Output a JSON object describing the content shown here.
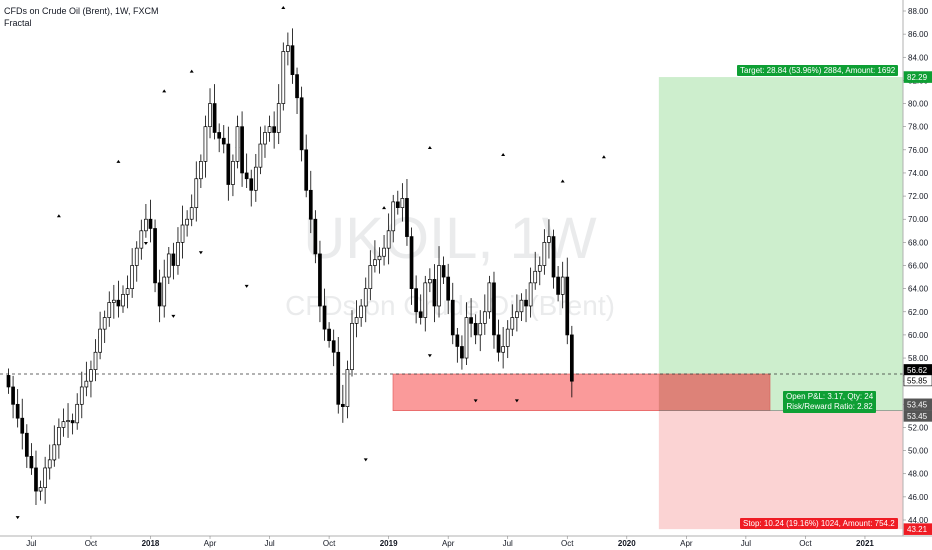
{
  "header": {
    "title": "CFDs on Crude Oil (Brent), 1W, FXCM",
    "indicator": "Fractal"
  },
  "watermark": {
    "symbol": "UKOIL, 1W",
    "name": "CFDs on Crude Oil (Brent)"
  },
  "colors": {
    "up": "#ffffff",
    "down": "#000000",
    "target_zone": "#cdeecd",
    "stop_zone": "#fbd3d3",
    "entry_zone": "#f98f8f",
    "green_label": "#0e9f34",
    "red_label": "#ef1c24"
  },
  "position": {
    "target_label": "Target: 28.84 (53.96%) 2884, Amount: 1692",
    "stop_label": "Stop: 10.24 (19.16%) 1024, Amount: 754.2",
    "pnl_line1": "Open P&L: 3.17, Qty: 24",
    "pnl_line2": "Risk/Reward Ratio: 2.82"
  },
  "price_tags": {
    "target": "82.29",
    "current": "56.62",
    "close": "55.85",
    "entry": "53.45",
    "entry2": "53.45",
    "stop": "43.21"
  },
  "chart_data": {
    "type": "candlestick",
    "title": "CFDs on Crude Oil (Brent), 1W, FXCM",
    "ylim": [
      42.4,
      89.2
    ],
    "y_ticks": [
      "44.00",
      "46.00",
      "48.00",
      "50.00",
      "52.00",
      "54.00",
      "56.00",
      "58.00",
      "60.00",
      "62.00",
      "64.00",
      "66.00",
      "68.00",
      "70.00",
      "72.00",
      "74.00",
      "76.00",
      "78.00",
      "80.00",
      "82.00",
      "84.00",
      "86.00",
      "88.00"
    ],
    "x_labels": [
      {
        "label": "Jul",
        "bold": false,
        "week": 5
      },
      {
        "label": "Oct",
        "bold": false,
        "week": 18
      },
      {
        "label": "2018",
        "bold": true,
        "week": 31
      },
      {
        "label": "Apr",
        "bold": false,
        "week": 44
      },
      {
        "label": "Jul",
        "bold": false,
        "week": 57
      },
      {
        "label": "Oct",
        "bold": false,
        "week": 70
      },
      {
        "label": "2019",
        "bold": true,
        "week": 83
      },
      {
        "label": "Apr",
        "bold": false,
        "week": 96
      },
      {
        "label": "Jul",
        "bold": false,
        "week": 109
      },
      {
        "label": "Oct",
        "bold": false,
        "week": 122
      },
      {
        "label": "2020",
        "bold": true,
        "week": 135
      },
      {
        "label": "Apr",
        "bold": false,
        "week": 148
      },
      {
        "label": "Jul",
        "bold": false,
        "week": 161
      },
      {
        "label": "Oct",
        "bold": false,
        "week": 174
      },
      {
        "label": "2021",
        "bold": true,
        "week": 187
      }
    ],
    "weekly_closes": [
      55.5,
      54.0,
      52.8,
      51.5,
      49.5,
      48.5,
      46.5,
      46.8,
      48.5,
      49.2,
      50.5,
      52.0,
      52.5,
      52.6,
      52.4,
      54.0,
      55.5,
      56.0,
      57.0,
      58.5,
      60.5,
      61.5,
      62.8,
      63.0,
      62.5,
      63.5,
      64.0,
      66.0,
      67.5,
      69.0,
      70.0,
      69.2,
      64.5,
      62.5,
      65.0,
      67.0,
      66.0,
      68.0,
      69.5,
      70.0,
      71.0,
      73.5,
      75.0,
      78.0,
      80.0,
      77.5,
      77.0,
      76.5,
      73.0,
      75.0,
      78.0,
      74.0,
      73.5,
      72.5,
      74.5,
      76.5,
      77.5,
      78.0,
      77.5,
      80.0,
      84.5,
      85.0,
      82.5,
      80.5,
      76.0,
      72.5,
      70.0,
      67.0,
      62.5,
      60.5,
      59.5,
      58.5,
      54.0,
      53.8,
      57.0,
      61.0,
      61.5,
      62.5,
      64.0,
      66.0,
      66.5,
      66.8,
      67.5,
      69.0,
      71.5,
      71.0,
      71.8,
      68.5,
      64.0,
      62.0,
      61.5,
      64.5,
      64.8,
      62.5,
      66.0,
      65.0,
      63.0,
      60.0,
      59.0,
      58.0,
      61.5,
      61.0,
      60.0,
      61.0,
      62.0,
      64.5,
      60.0,
      58.5,
      59.0,
      60.5,
      61.5,
      62.0,
      63.0,
      62.5,
      64.5,
      65.5,
      66.0,
      68.0,
      68.5,
      65.0,
      63.5,
      65.0,
      60.0,
      56.0
    ],
    "fractals_up": [
      [
        11,
        70.3
      ],
      [
        24,
        75.0
      ],
      [
        34,
        81.1
      ],
      [
        40,
        82.8
      ],
      [
        50,
        76.3
      ],
      [
        60,
        88.3
      ],
      [
        82,
        71.0
      ],
      [
        92,
        76.2
      ],
      [
        108,
        75.6
      ],
      [
        121,
        73.3
      ],
      [
        130,
        75.4
      ]
    ],
    "fractals_down": [
      [
        2,
        44.2
      ],
      [
        10,
        49.2
      ],
      [
        20,
        59.7
      ],
      [
        30,
        67.9
      ],
      [
        36,
        61.6
      ],
      [
        42,
        67.1
      ],
      [
        52,
        64.2
      ],
      [
        78,
        49.2
      ],
      [
        92,
        58.2
      ],
      [
        102,
        54.3
      ],
      [
        111,
        54.3
      ]
    ],
    "position": {
      "entry": 53.45,
      "target": 82.29,
      "stop": 43.21,
      "current": 56.62,
      "start_week": 142,
      "end_week": 190
    }
  }
}
